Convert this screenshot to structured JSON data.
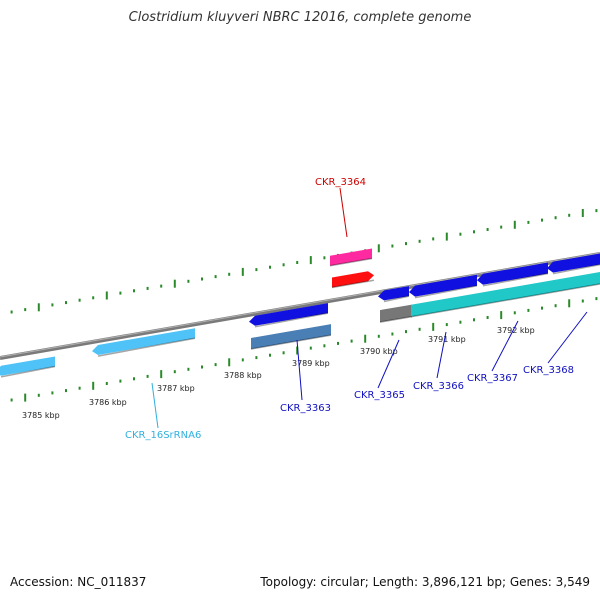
{
  "title": "Clostridium kluyveri NBRC 12016, complete genome",
  "footer": {
    "accession": "Accession: NC_011837",
    "summary": "Topology: circular; Length: 3,896,121 bp; Genes: 3,549"
  },
  "colors": {
    "axis": "#888888",
    "tick": "#2a8a2a",
    "rrna": "#4fc3f7",
    "cds_blue": "#1010e0",
    "steel": "#4a7fb5",
    "pink": "#ff2aa0",
    "red": "#ff1010",
    "gray": "#777777",
    "cyan": "#20c8c8",
    "label_blue": "#1010c0",
    "label_red": "#cc0000",
    "label_cyan": "#30b0e0"
  },
  "ticks": [
    {
      "label": "3785 kbp"
    },
    {
      "label": "3786 kbp"
    },
    {
      "label": "3787 kbp"
    },
    {
      "label": "3788 kbp"
    },
    {
      "label": "3789 kbp"
    },
    {
      "label": "3790 kbp"
    },
    {
      "label": "3791 kbp"
    },
    {
      "label": "3792 kbp"
    }
  ],
  "gene_labels": [
    {
      "id": "rrna",
      "text": "CKR_16SrRNA6",
      "color_key": "label_cyan"
    },
    {
      "id": "g3363",
      "text": "CKR_3363",
      "color_key": "label_blue"
    },
    {
      "id": "g3364",
      "text": "CKR_3364",
      "color_key": "label_red"
    },
    {
      "id": "g3365",
      "text": "CKR_3365",
      "color_key": "label_blue"
    },
    {
      "id": "g3366",
      "text": "CKR_3366",
      "color_key": "label_blue"
    },
    {
      "id": "g3367",
      "text": "CKR_3367",
      "color_key": "label_blue"
    },
    {
      "id": "g3368",
      "text": "CKR_3368",
      "color_key": "label_blue"
    }
  ]
}
